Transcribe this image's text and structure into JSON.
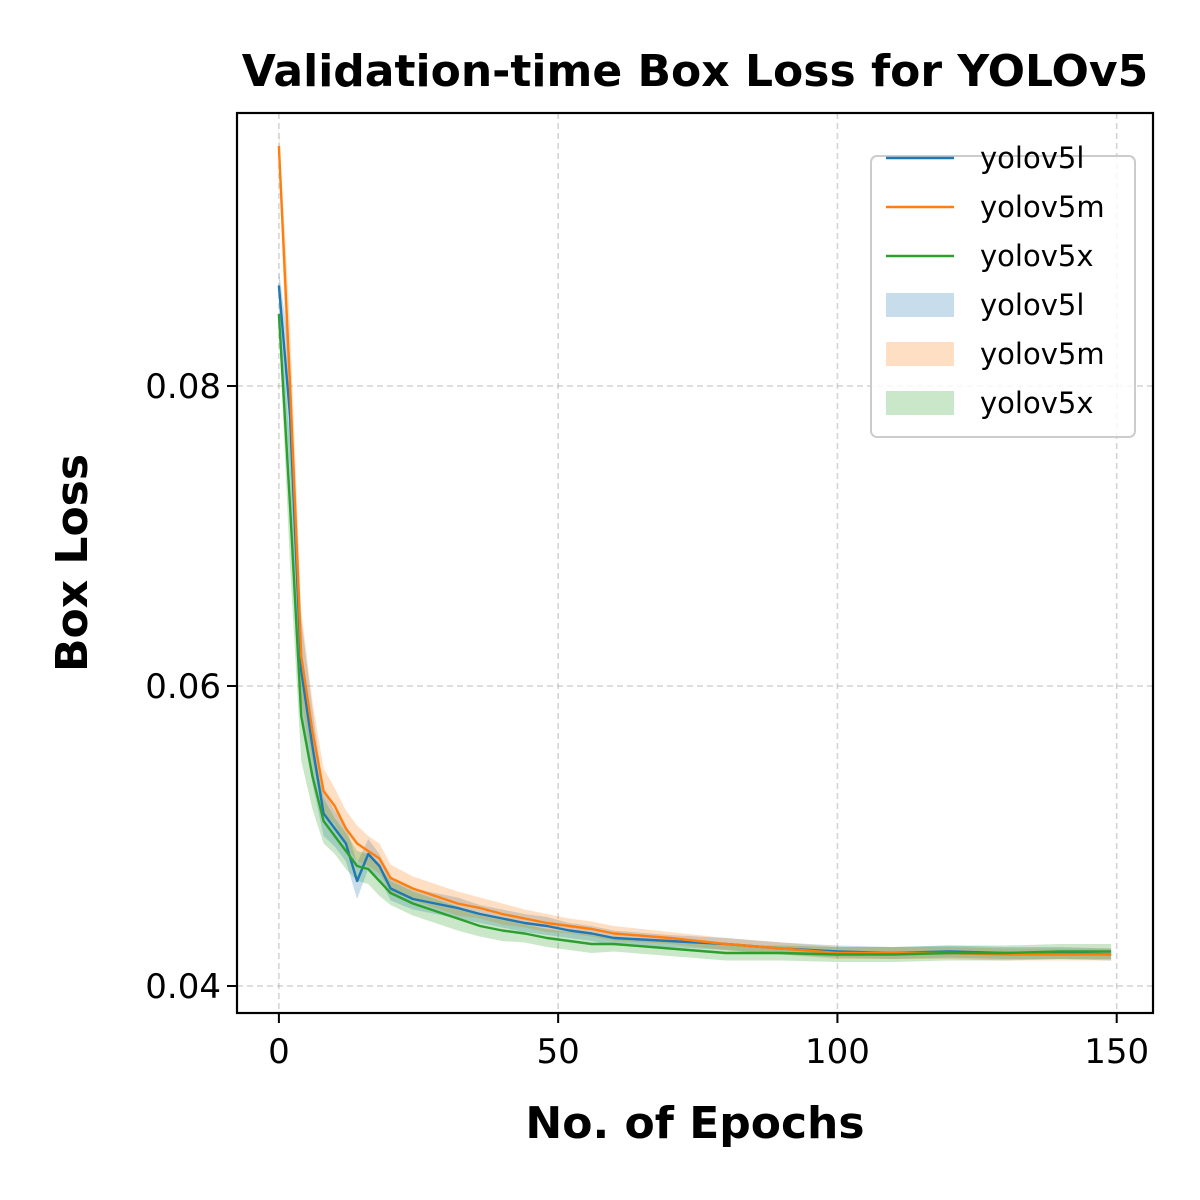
{
  "chart_data": {
    "type": "line",
    "title": "Validation-time Box Loss for YOLOv5",
    "xlabel": "No. of Epochs",
    "ylabel": "Box Loss",
    "xlim": [
      -7.5,
      156.5
    ],
    "ylim": [
      0.0382,
      0.0982
    ],
    "xticks": [
      0,
      50,
      100,
      150
    ],
    "yticks": [
      0.04,
      0.06,
      0.08
    ],
    "ytick_labels": [
      "0.04",
      "0.06",
      "0.08"
    ],
    "grid": true,
    "legend_position": "top-right",
    "legend_entries": [
      {
        "label": "yolov5l",
        "kind": "line",
        "color": "#1f77b4"
      },
      {
        "label": "yolov5m",
        "kind": "line",
        "color": "#ff7f0e"
      },
      {
        "label": "yolov5x",
        "kind": "line",
        "color": "#2ca02c"
      },
      {
        "label": "yolov5l",
        "kind": "band",
        "color": "#1f77b4"
      },
      {
        "label": "yolov5m",
        "kind": "band",
        "color": "#ff7f0e"
      },
      {
        "label": "yolov5x",
        "kind": "band",
        "color": "#2ca02c"
      }
    ],
    "series": [
      {
        "name": "yolov5l",
        "color": "#1f77b4",
        "x": [
          0,
          2,
          4,
          6,
          8,
          10,
          12,
          14,
          16,
          18,
          20,
          24,
          28,
          32,
          36,
          40,
          44,
          48,
          52,
          56,
          60,
          70,
          80,
          90,
          100,
          110,
          120,
          130,
          140,
          149
        ],
        "y": [
          0.0867,
          0.078,
          0.061,
          0.056,
          0.0515,
          0.0505,
          0.0495,
          0.047,
          0.0488,
          0.048,
          0.0465,
          0.0458,
          0.0455,
          0.0452,
          0.0448,
          0.0445,
          0.0442,
          0.044,
          0.0437,
          0.0435,
          0.0432,
          0.043,
          0.0428,
          0.0425,
          0.0423,
          0.0422,
          0.0423,
          0.0422,
          0.0422,
          0.0421
        ],
        "band": [
          0.001,
          0.004,
          0.0035,
          0.0025,
          0.0015,
          0.0012,
          0.0012,
          0.0012,
          0.001,
          0.0008,
          0.0008,
          0.0007,
          0.0007,
          0.0007,
          0.0006,
          0.0006,
          0.0006,
          0.0006,
          0.0005,
          0.0005,
          0.0005,
          0.0004,
          0.0004,
          0.0004,
          0.0004,
          0.0004,
          0.0004,
          0.0004,
          0.0004,
          0.0004
        ]
      },
      {
        "name": "yolov5m",
        "color": "#ff7f0e",
        "x": [
          0,
          2,
          4,
          6,
          8,
          10,
          12,
          14,
          16,
          18,
          20,
          24,
          28,
          32,
          36,
          40,
          44,
          48,
          52,
          56,
          60,
          70,
          80,
          90,
          100,
          110,
          120,
          130,
          140,
          149
        ],
        "y": [
          0.096,
          0.08,
          0.062,
          0.057,
          0.053,
          0.052,
          0.0505,
          0.0495,
          0.049,
          0.0485,
          0.0472,
          0.0465,
          0.046,
          0.0455,
          0.0452,
          0.0448,
          0.0445,
          0.0442,
          0.044,
          0.0438,
          0.0435,
          0.0432,
          0.0428,
          0.0425,
          0.0422,
          0.0422,
          0.0422,
          0.0421,
          0.0421,
          0.0421
        ],
        "band": [
          0.0012,
          0.004,
          0.003,
          0.002,
          0.0015,
          0.0012,
          0.0012,
          0.0012,
          0.001,
          0.001,
          0.0009,
          0.0008,
          0.0008,
          0.0008,
          0.0007,
          0.0007,
          0.0006,
          0.0006,
          0.0005,
          0.0005,
          0.0005,
          0.0004,
          0.0004,
          0.0004,
          0.0004,
          0.0004,
          0.0004,
          0.0004,
          0.0004,
          0.0004
        ]
      },
      {
        "name": "yolov5x",
        "color": "#2ca02c",
        "x": [
          0,
          2,
          4,
          6,
          8,
          10,
          12,
          14,
          16,
          18,
          20,
          24,
          28,
          32,
          36,
          40,
          44,
          48,
          52,
          56,
          60,
          70,
          80,
          90,
          100,
          110,
          120,
          130,
          140,
          149
        ],
        "y": [
          0.0848,
          0.072,
          0.058,
          0.054,
          0.051,
          0.05,
          0.049,
          0.048,
          0.0478,
          0.047,
          0.0462,
          0.0455,
          0.045,
          0.0445,
          0.044,
          0.0437,
          0.0435,
          0.0432,
          0.043,
          0.0428,
          0.0428,
          0.0425,
          0.0422,
          0.0422,
          0.0421,
          0.0421,
          0.0422,
          0.0422,
          0.0423,
          0.0423
        ],
        "band": [
          0.001,
          0.004,
          0.003,
          0.0022,
          0.0015,
          0.0012,
          0.0012,
          0.001,
          0.001,
          0.001,
          0.0008,
          0.0008,
          0.0008,
          0.0008,
          0.0007,
          0.0007,
          0.0006,
          0.0006,
          0.0006,
          0.0006,
          0.0005,
          0.0005,
          0.0005,
          0.0005,
          0.0005,
          0.0005,
          0.0005,
          0.0005,
          0.0005,
          0.0005
        ]
      }
    ]
  }
}
